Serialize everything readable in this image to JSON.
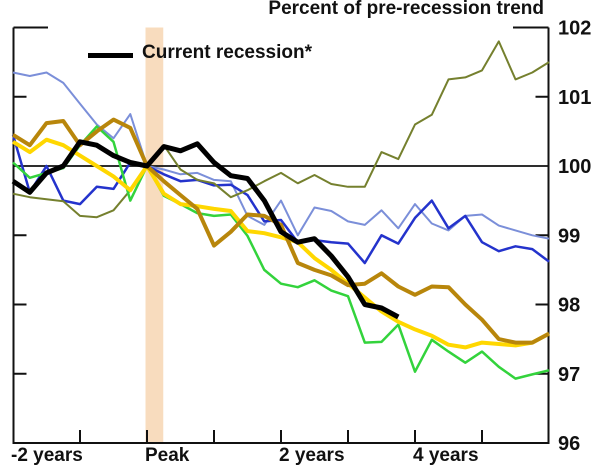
{
  "title": "Percent of pre-recession trend",
  "legend": {
    "label": "Current recession*",
    "swatch_color": "#000000"
  },
  "chart_data": {
    "type": "line",
    "title": "Percent of pre-recession trend",
    "x_unit": "quarters relative to business-cycle peak",
    "x_range_years": [
      -2,
      6
    ],
    "ylim": [
      96,
      102
    ],
    "y_ticks": [
      96,
      97,
      98,
      99,
      100,
      101,
      102
    ],
    "x_tick_years": [
      -1,
      0,
      1,
      2,
      3,
      4,
      5
    ],
    "x_labels": [
      {
        "text": "-2 years",
        "year": -2
      },
      {
        "text": "Peak",
        "year": 0
      },
      {
        "text": "2 years",
        "year": 2
      },
      {
        "text": "4 years",
        "year": 4
      }
    ],
    "reference_line": 100,
    "peak_band": {
      "color": "#f8dcbe",
      "width_quarters": 1
    },
    "grid": false,
    "legend_position": "top-left-inside",
    "series": [
      {
        "name": "recession-light-blue",
        "color": "#7b8fd9",
        "width": 2,
        "t0": -8,
        "values": [
          101.35,
          101.3,
          101.35,
          101.2,
          100.9,
          100.6,
          100.4,
          100.75,
          100.0,
          99.95,
          99.88,
          99.9,
          99.8,
          99.78,
          99.28,
          99.15,
          99.5,
          99.0,
          99.4,
          99.35,
          99.2,
          99.15,
          99.36,
          99.1,
          99.45,
          99.17,
          99.07,
          99.28,
          99.3,
          99.14,
          99.07,
          99.0,
          98.95
        ]
      },
      {
        "name": "recession-royal-blue",
        "color": "#2433cc",
        "width": 2.5,
        "t0": -8,
        "values": [
          100.45,
          99.62,
          100.0,
          99.5,
          99.45,
          99.7,
          99.67,
          100.05,
          100.0,
          99.88,
          99.78,
          99.8,
          99.72,
          99.73,
          99.58,
          99.2,
          99.22,
          98.9,
          98.93,
          98.9,
          98.88,
          98.6,
          99.0,
          98.88,
          99.25,
          99.5,
          99.1,
          99.28,
          98.9,
          98.77,
          98.84,
          98.8,
          98.62
        ]
      },
      {
        "name": "recession-olive",
        "color": "#75802e",
        "width": 2,
        "t0": -8,
        "values": [
          99.6,
          99.55,
          99.52,
          99.49,
          99.28,
          99.26,
          99.36,
          99.65,
          100.0,
          100.3,
          99.95,
          99.8,
          99.75,
          99.55,
          99.65,
          99.78,
          99.9,
          99.75,
          99.87,
          99.74,
          99.7,
          99.7,
          100.2,
          100.1,
          100.6,
          100.74,
          101.25,
          101.28,
          101.38,
          101.8,
          101.25,
          101.35,
          101.5
        ]
      },
      {
        "name": "recession-green",
        "color": "#33d33c",
        "width": 2.5,
        "t0": -8,
        "values": [
          100.05,
          99.83,
          99.9,
          99.97,
          100.3,
          100.57,
          100.35,
          99.5,
          100.0,
          99.57,
          99.45,
          99.32,
          99.28,
          99.3,
          98.99,
          98.5,
          98.3,
          98.25,
          98.35,
          98.2,
          98.12,
          97.45,
          97.46,
          97.71,
          97.03,
          97.49,
          97.32,
          97.16,
          97.32,
          97.1,
          96.93,
          96.99,
          97.05
        ]
      },
      {
        "name": "recession-yellow",
        "color": "#ffd700",
        "width": 4,
        "t0": -8,
        "values": [
          100.35,
          100.2,
          100.38,
          100.3,
          100.15,
          100.0,
          99.85,
          99.65,
          100.0,
          99.6,
          99.45,
          99.42,
          99.38,
          99.35,
          99.06,
          99.03,
          98.97,
          98.9,
          98.67,
          98.5,
          98.3,
          98.1,
          97.9,
          97.75,
          97.64,
          97.55,
          97.42,
          97.38,
          97.45,
          97.43,
          97.41,
          97.45,
          97.58
        ]
      },
      {
        "name": "recession-goldenrod",
        "color": "#b8860b",
        "width": 4,
        "t0": -8,
        "values": [
          100.45,
          100.3,
          100.62,
          100.65,
          100.3,
          100.5,
          100.67,
          100.55,
          100.0,
          99.78,
          99.58,
          99.38,
          98.85,
          99.05,
          99.3,
          99.28,
          99.15,
          98.6,
          98.5,
          98.42,
          98.28,
          98.3,
          98.45,
          98.26,
          98.14,
          98.26,
          98.25,
          98.0,
          97.78,
          97.5,
          97.45,
          97.45,
          97.58
        ]
      },
      {
        "name": "current-recession",
        "label": "Current recession*",
        "color": "#000000",
        "width": 5,
        "t0": -8,
        "values": [
          99.78,
          99.62,
          99.9,
          100.0,
          100.35,
          100.3,
          100.15,
          100.05,
          100.0,
          100.28,
          100.22,
          100.32,
          100.05,
          99.86,
          99.82,
          99.5,
          99.05,
          98.9,
          98.95,
          98.7,
          98.4,
          98.0,
          97.95,
          97.82
        ]
      }
    ]
  }
}
